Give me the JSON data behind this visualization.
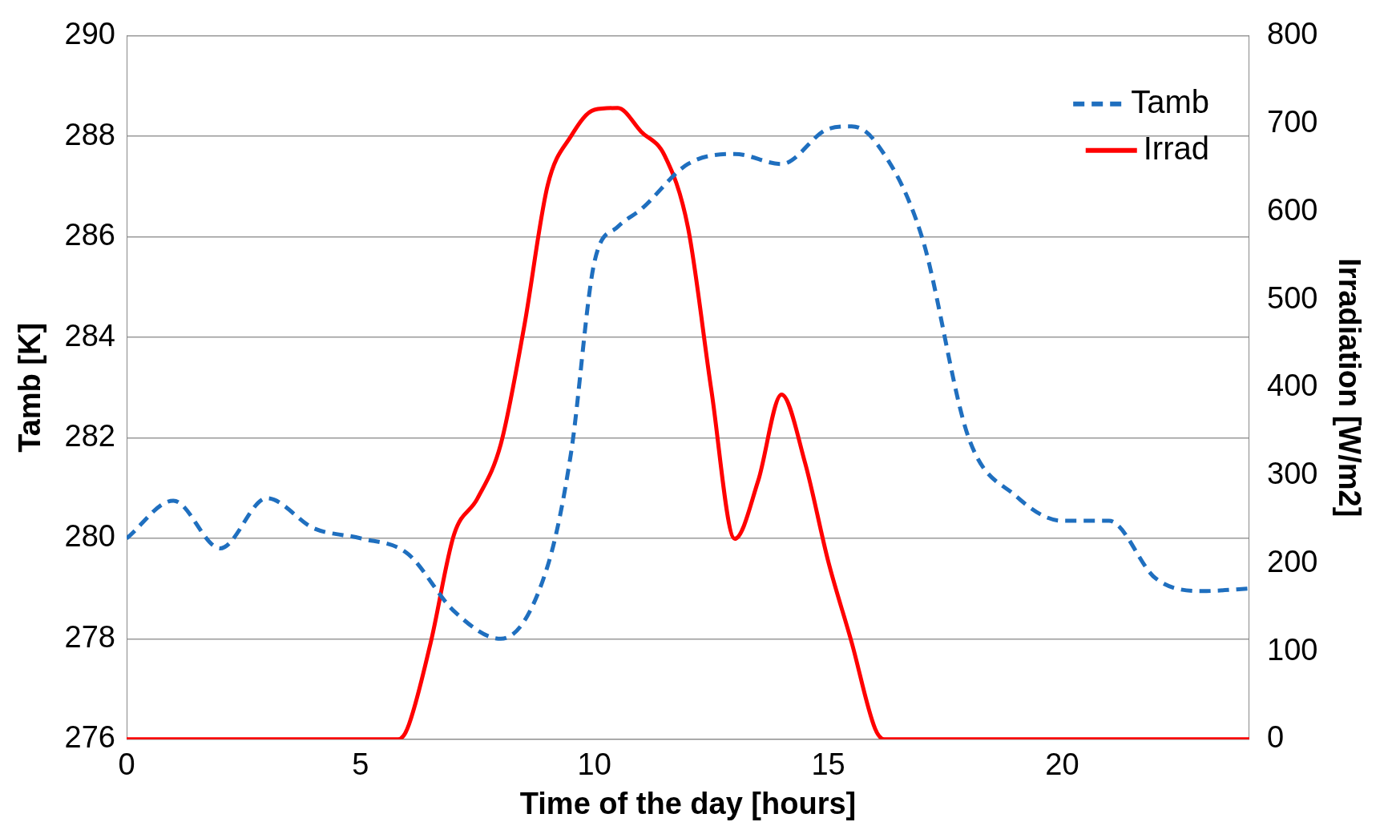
{
  "chart_data": {
    "type": "line",
    "xlabel": "Time of the day [hours]",
    "ylabel": "Tamb [K]",
    "y2label": "Irradiation [W/m2]",
    "xlim": [
      0,
      24
    ],
    "xticks": [
      0,
      5,
      10,
      15,
      20
    ],
    "ylim": [
      276,
      290
    ],
    "yticks": [
      276,
      278,
      280,
      282,
      284,
      286,
      288,
      290
    ],
    "y2lim": [
      0,
      800
    ],
    "y2ticks": [
      0,
      100,
      200,
      300,
      400,
      500,
      600,
      700,
      800
    ],
    "grid": "y",
    "legend": "top right",
    "marker": "none",
    "series": [
      {
        "name": "Tamb",
        "color": "#1f6fbf",
        "line_style": "dashed",
        "x": [
          0,
          1,
          2,
          3,
          4,
          5,
          6,
          7,
          8,
          9,
          9.5,
          10,
          10.5,
          11,
          12,
          13,
          14,
          15,
          15.5,
          16,
          17,
          18,
          19,
          20,
          21,
          22,
          23,
          24
        ],
        "values": [
          280.0,
          280.75,
          279.8,
          280.8,
          280.2,
          280.0,
          279.7,
          278.55,
          278.0,
          279.45,
          281.7,
          285.5,
          286.2,
          286.55,
          287.45,
          287.65,
          287.45,
          288.15,
          288.2,
          287.9,
          286.0,
          282.0,
          280.85,
          280.35,
          280.35,
          279.2,
          278.95,
          279.0
        ]
      },
      {
        "name": "Irrad",
        "color": "#ff0000",
        "line_style": "solid",
        "axis": "y2",
        "x": [
          0,
          5.8,
          6,
          6.5,
          7,
          7.5,
          8,
          8.5,
          9,
          9.5,
          10,
          10.5,
          11,
          11.5,
          12,
          12.5,
          13,
          13.5,
          14,
          14.5,
          15,
          15.5,
          16,
          16.2,
          24
        ],
        "values": [
          0,
          0,
          12,
          110,
          233,
          274,
          336,
          470,
          630,
          686,
          716,
          718,
          691,
          664,
          582,
          397,
          228,
          294,
          392,
          315,
          202,
          110,
          12,
          0,
          0
        ]
      }
    ]
  }
}
